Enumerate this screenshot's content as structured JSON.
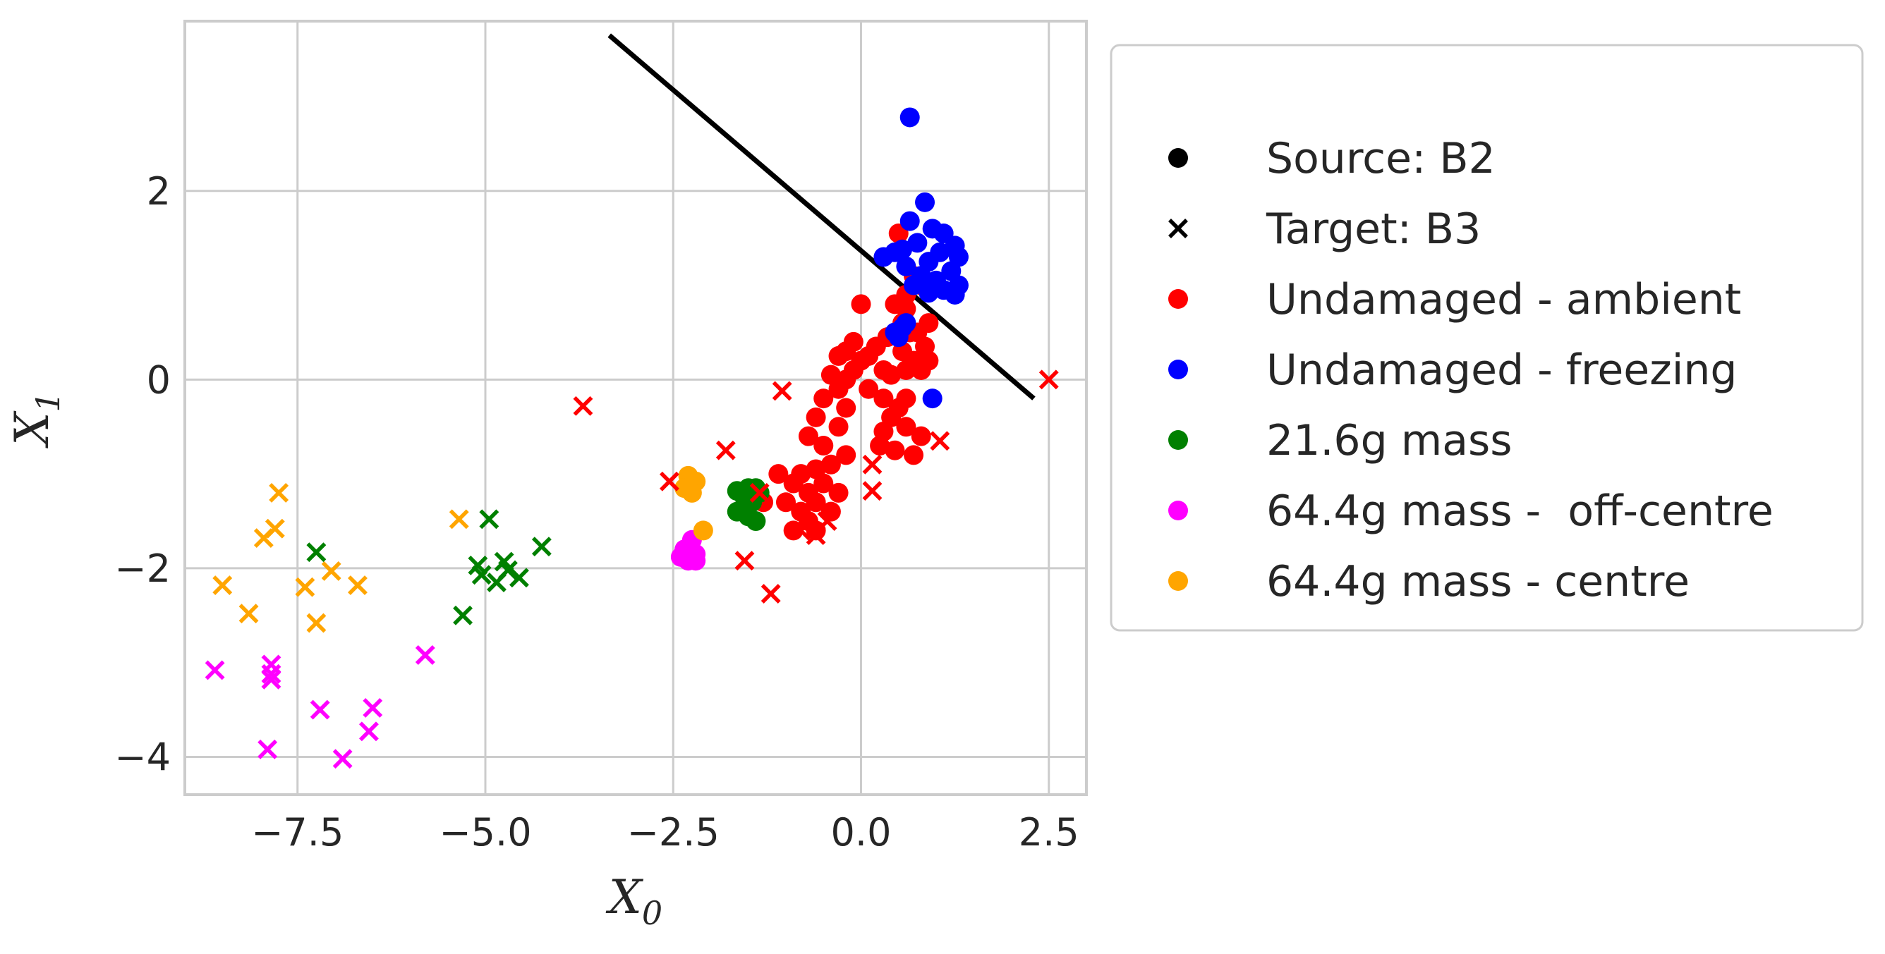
{
  "chart_data": {
    "type": "scatter",
    "title": "",
    "xlabel": "X",
    "xlabel_sub": "0",
    "ylabel": "X",
    "ylabel_sub": "1",
    "xlim": [
      -9.0,
      3.0
    ],
    "ylim": [
      -4.4,
      3.8
    ],
    "grid": true,
    "x_ticks": [
      -7.5,
      -5.0,
      -2.5,
      0.0,
      2.5
    ],
    "x_tick_labels": [
      "−7.5",
      "−5.0",
      "−2.5",
      "0.0",
      "2.5"
    ],
    "y_ticks": [
      2,
      0,
      -2,
      -4
    ],
    "y_tick_labels": [
      "2",
      "0",
      "−2",
      "−4"
    ],
    "legend_position": "outside-right",
    "legend": [
      {
        "label": "Source: B2",
        "marker": "circle",
        "color": "#000000"
      },
      {
        "label": "Target: B3",
        "marker": "x",
        "color": "#000000"
      },
      {
        "label": "Undamaged - ambient",
        "marker": "circle",
        "color": "#ff0000"
      },
      {
        "label": "Undamaged - freezing",
        "marker": "circle",
        "color": "#0000ff"
      },
      {
        "label": "21.6g mass",
        "marker": "circle",
        "color": "#008000"
      },
      {
        "label": "64.4g mass -  off-centre",
        "marker": "circle",
        "color": "#ff00ff"
      },
      {
        "label": "64.4g mass - centre",
        "marker": "circle",
        "color": "#ffa500"
      }
    ],
    "decision_boundary": {
      "x": [
        -3.35,
        2.3
      ],
      "y": [
        3.65,
        -0.2
      ],
      "color": "#000000"
    },
    "series": [
      {
        "name": "Undamaged - ambient",
        "domain": "Source: B2",
        "marker": "circle",
        "color": "#ff0000",
        "points": [
          [
            0.5,
            1.55
          ],
          [
            0.7,
            1.1
          ],
          [
            0.8,
            1.0
          ],
          [
            0.6,
            0.9
          ],
          [
            0.45,
            0.8
          ],
          [
            0.6,
            0.75
          ],
          [
            0.9,
            0.6
          ],
          [
            0.75,
            0.5
          ],
          [
            0.65,
            0.5
          ],
          [
            0.85,
            0.35
          ],
          [
            0.55,
            0.3
          ],
          [
            0.7,
            0.2
          ],
          [
            0.9,
            0.2
          ],
          [
            0.6,
            0.1
          ],
          [
            0.8,
            0.1
          ],
          [
            0.4,
            0.05
          ],
          [
            0.2,
            0.35
          ],
          [
            0.1,
            0.25
          ],
          [
            0.0,
            0.8
          ],
          [
            -0.1,
            0.4
          ],
          [
            -0.2,
            0.3
          ],
          [
            -0.3,
            0.25
          ],
          [
            0.0,
            0.2
          ],
          [
            -0.1,
            0.1
          ],
          [
            0.3,
            0.1
          ],
          [
            -0.4,
            0.05
          ],
          [
            -0.2,
            0.0
          ],
          [
            0.1,
            -0.1
          ],
          [
            0.3,
            -0.2
          ],
          [
            0.5,
            -0.3
          ],
          [
            0.4,
            -0.4
          ],
          [
            0.6,
            -0.5
          ],
          [
            0.8,
            -0.6
          ],
          [
            0.3,
            -0.55
          ],
          [
            0.25,
            -0.7
          ],
          [
            0.45,
            -0.75
          ],
          [
            0.7,
            -0.8
          ],
          [
            -0.3,
            -0.1
          ],
          [
            -0.2,
            -0.3
          ],
          [
            -0.5,
            -0.2
          ],
          [
            -0.6,
            -0.4
          ],
          [
            -0.3,
            -0.5
          ],
          [
            -0.7,
            -0.6
          ],
          [
            -0.5,
            -0.7
          ],
          [
            -0.4,
            -0.9
          ],
          [
            -0.6,
            -0.95
          ],
          [
            -0.8,
            -1.0
          ],
          [
            -0.5,
            -1.1
          ],
          [
            -0.7,
            -1.2
          ],
          [
            -0.9,
            -1.1
          ],
          [
            -0.6,
            -1.3
          ],
          [
            -0.8,
            -1.4
          ],
          [
            -1.0,
            -1.3
          ],
          [
            -0.7,
            -1.5
          ],
          [
            -0.9,
            -1.6
          ],
          [
            -0.6,
            -1.6
          ],
          [
            -0.3,
            -1.2
          ],
          [
            -0.4,
            -1.4
          ],
          [
            -1.1,
            -1.0
          ],
          [
            -1.3,
            -1.3
          ],
          [
            -0.2,
            -0.8
          ],
          [
            0.6,
            -0.2
          ],
          [
            0.55,
            0.6
          ],
          [
            0.35,
            0.45
          ]
        ]
      },
      {
        "name": "Undamaged - freezing",
        "domain": "Source: B2",
        "marker": "circle",
        "color": "#0000ff",
        "points": [
          [
            0.65,
            2.78
          ],
          [
            0.85,
            1.88
          ],
          [
            0.65,
            1.68
          ],
          [
            0.95,
            1.6
          ],
          [
            1.1,
            1.55
          ],
          [
            0.75,
            1.45
          ],
          [
            1.25,
            1.42
          ],
          [
            0.55,
            1.38
          ],
          [
            0.45,
            1.35
          ],
          [
            1.05,
            1.35
          ],
          [
            1.3,
            1.3
          ],
          [
            0.3,
            1.3
          ],
          [
            0.9,
            1.25
          ],
          [
            0.6,
            1.2
          ],
          [
            1.2,
            1.15
          ],
          [
            0.8,
            1.1
          ],
          [
            1.0,
            1.05
          ],
          [
            0.7,
            1.0
          ],
          [
            1.3,
            1.0
          ],
          [
            1.1,
            0.95
          ],
          [
            0.9,
            0.92
          ],
          [
            1.25,
            0.9
          ],
          [
            0.6,
            0.6
          ],
          [
            0.55,
            0.55
          ],
          [
            0.45,
            0.5
          ],
          [
            0.5,
            0.45
          ],
          [
            0.95,
            -0.2
          ]
        ]
      },
      {
        "name": "21.6g mass",
        "domain": "Source: B2",
        "marker": "circle",
        "color": "#008000",
        "points": [
          [
            -1.65,
            -1.18
          ],
          [
            -1.5,
            -1.15
          ],
          [
            -1.4,
            -1.15
          ],
          [
            -1.55,
            -1.25
          ],
          [
            -1.45,
            -1.3
          ],
          [
            -1.65,
            -1.4
          ],
          [
            -1.5,
            -1.45
          ],
          [
            -1.4,
            -1.5
          ],
          [
            -1.35,
            -1.2
          ]
        ]
      },
      {
        "name": "64.4g mass -  off-centre",
        "domain": "Source: B2",
        "marker": "circle",
        "color": "#ff00ff",
        "points": [
          [
            -2.25,
            -1.7
          ],
          [
            -2.35,
            -1.8
          ],
          [
            -2.2,
            -1.85
          ],
          [
            -2.4,
            -1.88
          ],
          [
            -2.3,
            -1.92
          ],
          [
            -2.2,
            -1.92
          ]
        ]
      },
      {
        "name": "64.4g mass - centre",
        "domain": "Source: B2",
        "marker": "circle",
        "color": "#ffa500",
        "points": [
          [
            -2.3,
            -1.02
          ],
          [
            -2.2,
            -1.08
          ],
          [
            -2.35,
            -1.15
          ],
          [
            -2.25,
            -1.2
          ],
          [
            -2.1,
            -1.6
          ]
        ]
      },
      {
        "name": "Undamaged - ambient",
        "domain": "Target: B3",
        "marker": "x",
        "color": "#ff0000",
        "points": [
          [
            2.5,
            0.0
          ],
          [
            -3.7,
            -0.28
          ],
          [
            -1.05,
            -0.12
          ],
          [
            1.05,
            -0.65
          ],
          [
            -1.8,
            -0.75
          ],
          [
            0.15,
            -0.9
          ],
          [
            -2.55,
            -1.08
          ],
          [
            0.15,
            -1.18
          ],
          [
            -0.45,
            -1.5
          ],
          [
            -1.35,
            -1.2
          ],
          [
            -0.8,
            -1.6
          ],
          [
            -0.6,
            -1.65
          ],
          [
            -1.55,
            -1.92
          ],
          [
            -1.2,
            -2.27
          ]
        ]
      },
      {
        "name": "21.6g mass",
        "domain": "Target: B3",
        "marker": "x",
        "color": "#008000",
        "points": [
          [
            -4.95,
            -1.48
          ],
          [
            -4.25,
            -1.77
          ],
          [
            -7.25,
            -1.83
          ],
          [
            -4.75,
            -1.93
          ],
          [
            -5.1,
            -1.97
          ],
          [
            -4.7,
            -2.02
          ],
          [
            -5.05,
            -2.07
          ],
          [
            -4.55,
            -2.1
          ],
          [
            -4.85,
            -2.15
          ],
          [
            -5.3,
            -2.5
          ]
        ]
      },
      {
        "name": "64.4g mass -  off-centre",
        "domain": "Target: B3",
        "marker": "x",
        "color": "#ff00ff",
        "points": [
          [
            -5.8,
            -2.92
          ],
          [
            -7.85,
            -3.02
          ],
          [
            -8.6,
            -3.08
          ],
          [
            -7.85,
            -3.12
          ],
          [
            -7.85,
            -3.18
          ],
          [
            -6.5,
            -3.48
          ],
          [
            -7.2,
            -3.5
          ],
          [
            -6.55,
            -3.73
          ],
          [
            -7.9,
            -3.92
          ],
          [
            -6.9,
            -4.02
          ]
        ]
      },
      {
        "name": "64.4g mass - centre",
        "domain": "Target: B3",
        "marker": "x",
        "color": "#ffa500",
        "points": [
          [
            -7.75,
            -1.2
          ],
          [
            -5.35,
            -1.48
          ],
          [
            -7.8,
            -1.58
          ],
          [
            -7.95,
            -1.68
          ],
          [
            -7.05,
            -2.03
          ],
          [
            -6.7,
            -2.18
          ],
          [
            -8.5,
            -2.18
          ],
          [
            -7.4,
            -2.2
          ],
          [
            -8.15,
            -2.48
          ],
          [
            -7.25,
            -2.58
          ]
        ]
      }
    ]
  }
}
